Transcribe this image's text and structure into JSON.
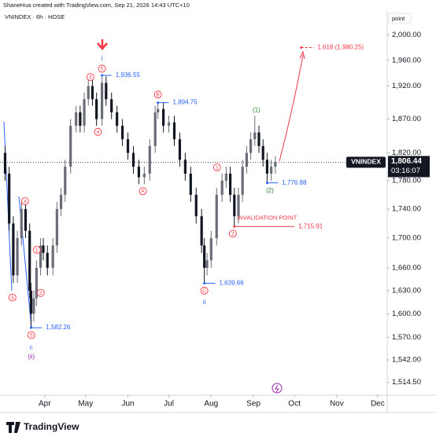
{
  "chart_data": {
    "type": "candlestick",
    "header": "ShaneHua created with TradingView.com, Sep 21, 2026 14:43 UTC+10",
    "title": "VNINDEX · 6h · HOSE",
    "y_unit": "point",
    "logo": "TradingView",
    "log_scale": true,
    "up_color": "#6a6d78",
    "down_color": "#131722",
    "x": [
      2,
      5,
      8,
      11,
      14,
      17,
      20,
      21,
      23,
      25,
      28,
      30,
      33,
      37,
      40,
      43,
      46,
      50,
      54,
      57,
      60,
      63,
      66,
      69,
      73,
      76,
      80,
      84,
      88,
      92,
      96,
      100,
      104,
      108,
      112,
      114,
      118,
      122,
      126,
      130,
      134,
      138,
      142,
      146,
      148,
      150,
      153,
      157,
      161,
      164,
      167,
      170,
      173,
      176,
      179,
      182,
      185,
      188,
      191,
      194,
      197,
      200
    ],
    "open": [
      1820,
      1790,
      1720,
      1650,
      1700,
      1740,
      1710,
      1630,
      1600,
      1620,
      1660,
      1690,
      1680,
      1660,
      1690,
      1740,
      1760,
      1800,
      1860,
      1880,
      1860,
      1900,
      1920,
      1900,
      1870,
      1925,
      1900,
      1880,
      1860,
      1840,
      1820,
      1800,
      1785,
      1790,
      1830,
      1880,
      1885,
      1860,
      1865,
      1840,
      1810,
      1790,
      1760,
      1730,
      1690,
      1660,
      1670,
      1700,
      1760,
      1780,
      1790,
      1760,
      1730,
      1760,
      1800,
      1820,
      1840,
      1850,
      1830,
      1810,
      1790,
      1800
    ],
    "high": [
      1830,
      1800,
      1730,
      1710,
      1750,
      1750,
      1720,
      1640,
      1630,
      1670,
      1700,
      1700,
      1690,
      1700,
      1750,
      1770,
      1810,
      1870,
      1890,
      1890,
      1910,
      1930,
      1930,
      1910,
      1936.55,
      1935,
      1910,
      1890,
      1870,
      1850,
      1830,
      1810,
      1800,
      1840,
      1890,
      1894.75,
      1895,
      1875,
      1875,
      1850,
      1820,
      1800,
      1770,
      1740,
      1700,
      1680,
      1710,
      1770,
      1790,
      1800,
      1800,
      1770,
      1770,
      1810,
      1830,
      1850,
      1875,
      1860,
      1840,
      1820,
      1810,
      1815
    ],
    "low": [
      1780,
      1710,
      1640,
      1640,
      1690,
      1700,
      1620,
      1582.26,
      1590,
      1610,
      1650,
      1670,
      1650,
      1650,
      1680,
      1730,
      1750,
      1790,
      1850,
      1850,
      1850,
      1890,
      1890,
      1860,
      1860,
      1890,
      1870,
      1850,
      1830,
      1810,
      1790,
      1775,
      1775,
      1780,
      1820,
      1870,
      1850,
      1850,
      1830,
      1800,
      1780,
      1750,
      1720,
      1680,
      1639.66,
      1650,
      1660,
      1690,
      1750,
      1770,
      1750,
      1715.91,
      1720,
      1750,
      1790,
      1810,
      1830,
      1820,
      1800,
      1776.88,
      1780,
      1790
    ],
    "close": [
      1790,
      1720,
      1650,
      1700,
      1740,
      1710,
      1630,
      1600,
      1620,
      1660,
      1690,
      1680,
      1660,
      1690,
      1740,
      1760,
      1800,
      1860,
      1880,
      1860,
      1900,
      1920,
      1900,
      1870,
      1925,
      1900,
      1880,
      1860,
      1840,
      1820,
      1800,
      1785,
      1790,
      1830,
      1880,
      1885,
      1860,
      1865,
      1840,
      1810,
      1790,
      1760,
      1730,
      1690,
      1660,
      1670,
      1700,
      1760,
      1780,
      1790,
      1760,
      1730,
      1760,
      1800,
      1820,
      1840,
      1850,
      1830,
      1810,
      1790,
      1800,
      1806.44
    ],
    "xlim": [
      0,
      282
    ],
    "xticks": [
      {
        "value": 31,
        "label": "Apr"
      },
      {
        "value": 61,
        "label": "May"
      },
      {
        "value": 92,
        "label": "Jun"
      },
      {
        "value": 122,
        "label": "Jul"
      },
      {
        "value": 153,
        "label": "Aug"
      },
      {
        "value": 184,
        "label": "Sep"
      },
      {
        "value": 214,
        "label": "Oct"
      },
      {
        "value": 245,
        "label": "Nov"
      },
      {
        "value": 275,
        "label": "Dec"
      }
    ],
    "ylim": [
      1500,
      2030
    ],
    "yticks": [
      {
        "value": 2000,
        "label": "2,000.00"
      },
      {
        "value": 1960,
        "label": "1,960.00"
      },
      {
        "value": 1920,
        "label": "1,920.00"
      },
      {
        "value": 1870,
        "label": "1,870.00"
      },
      {
        "value": 1820,
        "label": "1,820.00"
      },
      {
        "value": 1780,
        "label": "1,780.00"
      },
      {
        "value": 1740,
        "label": "1,740.00"
      },
      {
        "value": 1700,
        "label": "1,700.00"
      },
      {
        "value": 1660,
        "label": "1,660.00"
      },
      {
        "value": 1630,
        "label": "1,630.00"
      },
      {
        "value": 1600,
        "label": "1,600.00"
      },
      {
        "value": 1570,
        "label": "1,570.00"
      },
      {
        "value": 1542,
        "label": "1,542.00"
      },
      {
        "value": 1514.5,
        "label": "1,514.50"
      }
    ],
    "last_price": {
      "value": 1806.44,
      "label": "1,806.44"
    },
    "countdown": "03:16:07",
    "symbol_tag": "VNINDEX",
    "levels": [
      {
        "value": 1936.55,
        "label": "1,936.55",
        "x": [
          73,
          80
        ],
        "color": "#2962ff"
      },
      {
        "value": 1894.75,
        "label": "1,894.75",
        "x": [
          114,
          122
        ],
        "color": "#2962ff"
      },
      {
        "value": 1639.66,
        "label": "1,639.66",
        "x": [
          148,
          156
        ],
        "color": "#2962ff"
      },
      {
        "value": 1582.26,
        "label": "1,582.26",
        "x": [
          21,
          29
        ],
        "color": "#2962ff"
      },
      {
        "value": 1776.88,
        "label": "1,776.88",
        "x": [
          194,
          202
        ],
        "color": "#2962ff"
      },
      {
        "value": 1715.91,
        "label": "1,715.91",
        "x": [
          170,
          214
        ],
        "color": "#f23645"
      },
      {
        "value": 1980.25,
        "label": "1.618 (1,980.25)",
        "x": [
          219,
          228
        ],
        "color": "#f23645",
        "dashed": true
      }
    ],
    "annotations": [
      {
        "text": "3",
        "x": 64.5,
        "y": 1934,
        "style": "circle",
        "color": "#f23645"
      },
      {
        "text": "5",
        "x": 73,
        "y": 1947,
        "style": "circle",
        "color": "#f23645"
      },
      {
        "text": "i",
        "x": 73,
        "y": 1963,
        "style": "plain",
        "color": "#2962ff"
      },
      {
        "text": "4",
        "x": 70,
        "y": 1851,
        "style": "circle",
        "color": "#f23645"
      },
      {
        "text": "B",
        "x": 114,
        "y": 1907,
        "style": "circle",
        "color": "#f23645"
      },
      {
        "text": "4",
        "x": 16.6,
        "y": 1751,
        "style": "circle",
        "color": "#f23645"
      },
      {
        "text": "3",
        "x": 7.4,
        "y": 1621,
        "style": "circle",
        "color": "#f23645"
      },
      {
        "text": "1",
        "x": 25.3,
        "y": 1684,
        "style": "circle",
        "color": "#f23645"
      },
      {
        "text": "2",
        "x": 28.1,
        "y": 1627,
        "style": "circle",
        "color": "#f23645"
      },
      {
        "text": "5",
        "x": 21.2,
        "y": 1573,
        "style": "circle",
        "color": "#f23645"
      },
      {
        "text": "c",
        "x": 21.2,
        "y": 1558,
        "style": "plain",
        "color": "#2962ff"
      },
      {
        "text": "(ii)",
        "x": 21.2,
        "y": 1546,
        "style": "plain",
        "color": "#9c27b0"
      },
      {
        "text": "A",
        "x": 103,
        "y": 1765,
        "style": "circle",
        "color": "#f23645"
      },
      {
        "text": "1",
        "x": 157.3,
        "y": 1799,
        "style": "circle",
        "color": "#f23645"
      },
      {
        "text": "2",
        "x": 168.9,
        "y": 1706,
        "style": "circle",
        "color": "#f23645"
      },
      {
        "text": "(1)",
        "x": 186.2,
        "y": 1884,
        "style": "plain",
        "color": "#2e7d32"
      },
      {
        "text": "(2)",
        "x": 196,
        "y": 1766,
        "style": "plain",
        "color": "#2e7d32"
      },
      {
        "text": "C",
        "x": 148,
        "y": 1630,
        "style": "circle",
        "color": "#f23645"
      },
      {
        "text": "ii",
        "x": 148,
        "y": 1615,
        "style": "plain",
        "color": "#2962ff"
      },
      {
        "text": "INVALIDATION POINT",
        "x": 172,
        "y": 1728,
        "style": "note",
        "color": "#f23645"
      }
    ]
  }
}
